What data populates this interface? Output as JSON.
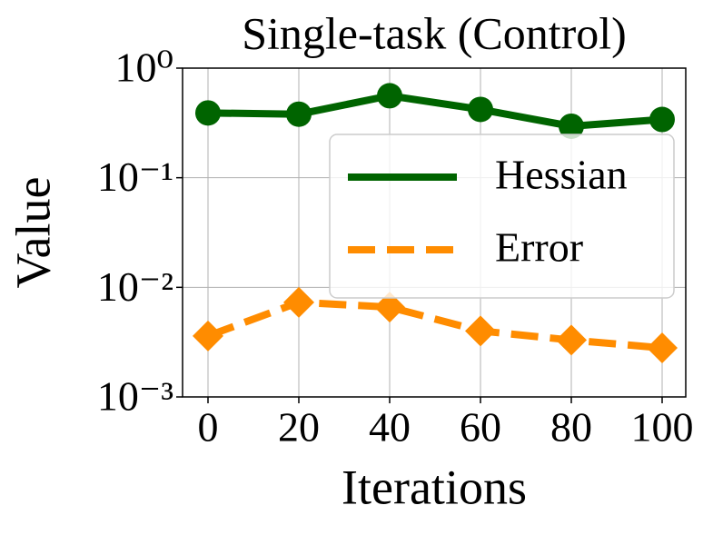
{
  "chart_data": {
    "type": "line",
    "title": "Single-task (Control)",
    "x_label": "Iterations",
    "y_label": "Value",
    "x": [
      0,
      20,
      40,
      60,
      80,
      100
    ],
    "series": [
      {
        "name": "Hessian",
        "color": "#006400",
        "marker": "circle",
        "linestyle": "solid",
        "values": [
          0.39,
          0.38,
          0.56,
          0.42,
          0.295,
          0.34
        ]
      },
      {
        "name": "Error",
        "color": "#ff8c00",
        "marker": "diamond",
        "linestyle": "dashed",
        "values": [
          0.0036,
          0.0073,
          0.0066,
          0.004,
          0.0033,
          0.0028
        ]
      }
    ],
    "xlim": [
      -5.6,
      105.2
    ],
    "xticks": [
      0,
      20,
      40,
      60,
      80,
      100
    ],
    "ylim": [
      0.001,
      1
    ],
    "yticks": [
      {
        "value": 0.001,
        "label": "10⁻³"
      },
      {
        "value": 0.01,
        "label": "10⁻²"
      },
      {
        "value": 0.1,
        "label": "10⁻¹"
      },
      {
        "value": 1,
        "label": "10⁰"
      }
    ],
    "y_scale": "log",
    "grid": true,
    "legend": "center right"
  }
}
